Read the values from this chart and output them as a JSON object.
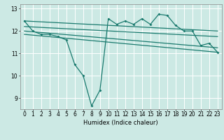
{
  "xlabel": "Humidex (Indice chaleur)",
  "xlim": [
    -0.5,
    23.5
  ],
  "ylim": [
    8.5,
    13.2
  ],
  "yticks": [
    9,
    10,
    11,
    12,
    13
  ],
  "xticks": [
    0,
    1,
    2,
    3,
    4,
    5,
    6,
    7,
    8,
    9,
    10,
    11,
    12,
    13,
    14,
    15,
    16,
    17,
    18,
    19,
    20,
    21,
    22,
    23
  ],
  "background_color": "#cce9e4",
  "grid_color": "#ffffff",
  "line_color": "#1a7a6e",
  "zigzag_x": [
    0,
    1,
    2,
    3,
    4,
    5,
    6,
    7,
    8,
    9,
    10,
    11,
    12,
    13,
    14,
    15,
    16,
    17,
    18,
    19,
    20,
    21,
    22,
    23
  ],
  "zigzag_y": [
    12.45,
    12.0,
    11.85,
    11.85,
    11.75,
    11.6,
    10.5,
    10.0,
    8.65,
    9.35,
    12.55,
    12.3,
    12.45,
    12.3,
    12.55,
    12.3,
    12.75,
    12.7,
    12.25,
    12.0,
    12.0,
    11.35,
    11.45,
    11.05
  ],
  "line1_x": [
    0,
    23
  ],
  "line1_y": [
    12.45,
    12.0
  ],
  "line2_x": [
    0,
    23
  ],
  "line2_y": [
    12.2,
    11.75
  ],
  "line3_x": [
    0,
    23
  ],
  "line3_y": [
    12.0,
    11.25
  ],
  "line4_x": [
    0,
    23
  ],
  "line4_y": [
    11.85,
    11.05
  ]
}
